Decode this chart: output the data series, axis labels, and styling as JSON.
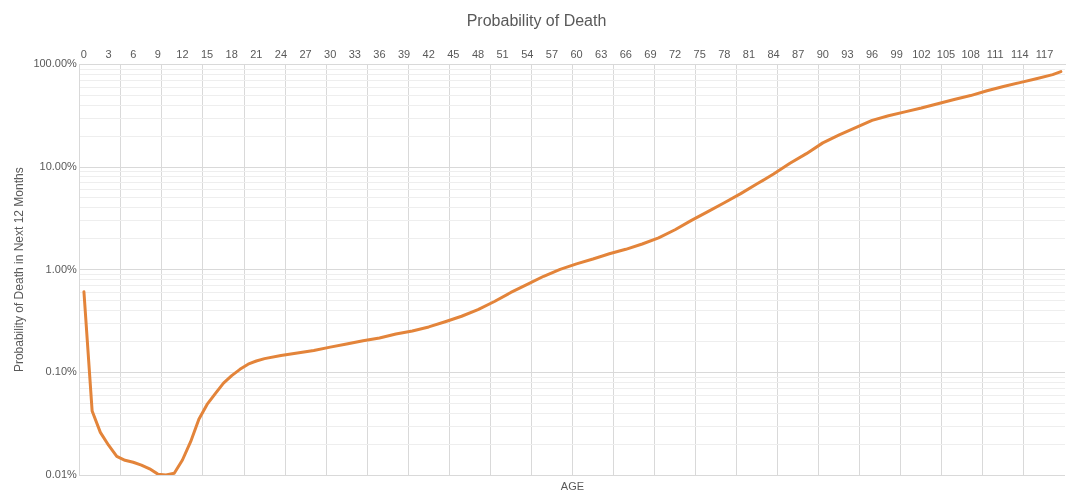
{
  "chart_data": {
    "type": "line",
    "title": "Probability of Death",
    "xlabel": "AGE",
    "ylabel": "Probability of Death in Next 12 Months",
    "series": [
      {
        "color": "#e3843a",
        "x": [
          0,
          1,
          2,
          3,
          4,
          5,
          6,
          7,
          8,
          9,
          10,
          11,
          12,
          13,
          14,
          15,
          16,
          17,
          18,
          19,
          20,
          21,
          22,
          24,
          26,
          28,
          30,
          32,
          34,
          36,
          38,
          40,
          42,
          44,
          46,
          48,
          50,
          52,
          54,
          56,
          58,
          60,
          62,
          64,
          66,
          68,
          70,
          72,
          74,
          76,
          78,
          80,
          82,
          84,
          86,
          88,
          90,
          92,
          94,
          96,
          98,
          100,
          102,
          104,
          106,
          108,
          110,
          112,
          114,
          116,
          118,
          119
        ],
        "values": [
          0.61,
          0.042,
          0.026,
          0.0195,
          0.0152,
          0.0139,
          0.0133,
          0.0125,
          0.0115,
          0.0102,
          0.01,
          0.0104,
          0.014,
          0.0211,
          0.035,
          0.0487,
          0.062,
          0.0785,
          0.093,
          0.107,
          0.12,
          0.129,
          0.136,
          0.146,
          0.154,
          0.163,
          0.176,
          0.189,
          0.203,
          0.216,
          0.236,
          0.253,
          0.277,
          0.311,
          0.352,
          0.408,
          0.49,
          0.6,
          0.718,
          0.863,
          1.007,
          1.14,
          1.27,
          1.43,
          1.58,
          1.78,
          2.04,
          2.45,
          3.02,
          3.68,
          4.49,
          5.51,
          6.87,
          8.55,
          10.9,
          13.5,
          17.2,
          20.6,
          24.2,
          28.5,
          31.6,
          34.5,
          37.6,
          41.4,
          45.5,
          49.7,
          55.4,
          61,
          66.5,
          72.4,
          79.5,
          85
        ]
      }
    ],
    "xlim": [
      -0.5,
      119.5
    ],
    "xticks": [
      0,
      3,
      6,
      9,
      12,
      15,
      18,
      21,
      24,
      27,
      30,
      33,
      36,
      39,
      42,
      45,
      48,
      51,
      54,
      57,
      60,
      63,
      66,
      69,
      72,
      75,
      78,
      81,
      84,
      87,
      90,
      93,
      96,
      99,
      102,
      105,
      108,
      111,
      114,
      117,
      {
        "value": 4.5,
        "label": null
      },
      {
        "value": 9.5,
        "label": null
      },
      {
        "value": 14.5,
        "label": null
      },
      {
        "value": 19.5,
        "label": null
      },
      {
        "value": 24.5,
        "label": null
      },
      {
        "value": 29.5,
        "label": null
      },
      {
        "value": 34.5,
        "label": null
      },
      {
        "value": 39.5,
        "label": null
      },
      {
        "value": 44.5,
        "label": null
      },
      {
        "value": 49.5,
        "label": null
      },
      {
        "value": 54.5,
        "label": null
      },
      {
        "value": 59.5,
        "label": null
      },
      {
        "value": 64.5,
        "label": null
      },
      {
        "value": 69.5,
        "label": null
      },
      {
        "value": 74.5,
        "label": null
      },
      {
        "value": 79.5,
        "label": null
      },
      {
        "value": 84.5,
        "label": null
      },
      {
        "value": 89.5,
        "label": null
      },
      {
        "value": 94.5,
        "label": null
      },
      {
        "value": 99.5,
        "label": null
      },
      {
        "value": 104.5,
        "label": null
      },
      {
        "value": 109.5,
        "label": null
      },
      {
        "value": 114.5,
        "label": null
      }
    ],
    "ylim": [
      0.01,
      100
    ],
    "yticks": [
      {
        "value": 0.01,
        "label": "0.01%"
      },
      {
        "value": 0.02,
        "label": null
      },
      {
        "value": 0.03,
        "label": null
      },
      {
        "value": 0.04,
        "label": null
      },
      {
        "value": 0.05,
        "label": null
      },
      {
        "value": 0.06,
        "label": null
      },
      {
        "value": 0.07,
        "label": null
      },
      {
        "value": 0.08,
        "label": null
      },
      {
        "value": 0.09,
        "label": null
      },
      {
        "value": 0.1,
        "label": "0.10%"
      },
      {
        "value": 0.2,
        "label": null
      },
      {
        "value": 0.3,
        "label": null
      },
      {
        "value": 0.4,
        "label": null
      },
      {
        "value": 0.5,
        "label": null
      },
      {
        "value": 0.6,
        "label": null
      },
      {
        "value": 0.7,
        "label": null
      },
      {
        "value": 0.8,
        "label": null
      },
      {
        "value": 0.9,
        "label": null
      },
      {
        "value": 1,
        "label": "1.00%"
      },
      {
        "value": 2,
        "label": null
      },
      {
        "value": 3,
        "label": null
      },
      {
        "value": 4,
        "label": null
      },
      {
        "value": 5,
        "label": null
      },
      {
        "value": 6,
        "label": null
      },
      {
        "value": 7,
        "label": null
      },
      {
        "value": 8,
        "label": null
      },
      {
        "value": 9,
        "label": null
      },
      {
        "value": 10,
        "label": "10.00%"
      },
      {
        "value": 20,
        "label": null
      },
      {
        "value": 30,
        "label": null
      },
      {
        "value": 40,
        "label": null
      },
      {
        "value": 50,
        "label": null
      },
      {
        "value": 60,
        "label": null
      },
      {
        "value": 70,
        "label": null
      },
      {
        "value": 80,
        "label": null
      },
      {
        "value": 90,
        "label": null
      },
      {
        "value": 100,
        "label": "100.00%"
      }
    ],
    "log": "y",
    "grid": true,
    "legend": false,
    "marker": "none",
    "line_style": "solid"
  }
}
